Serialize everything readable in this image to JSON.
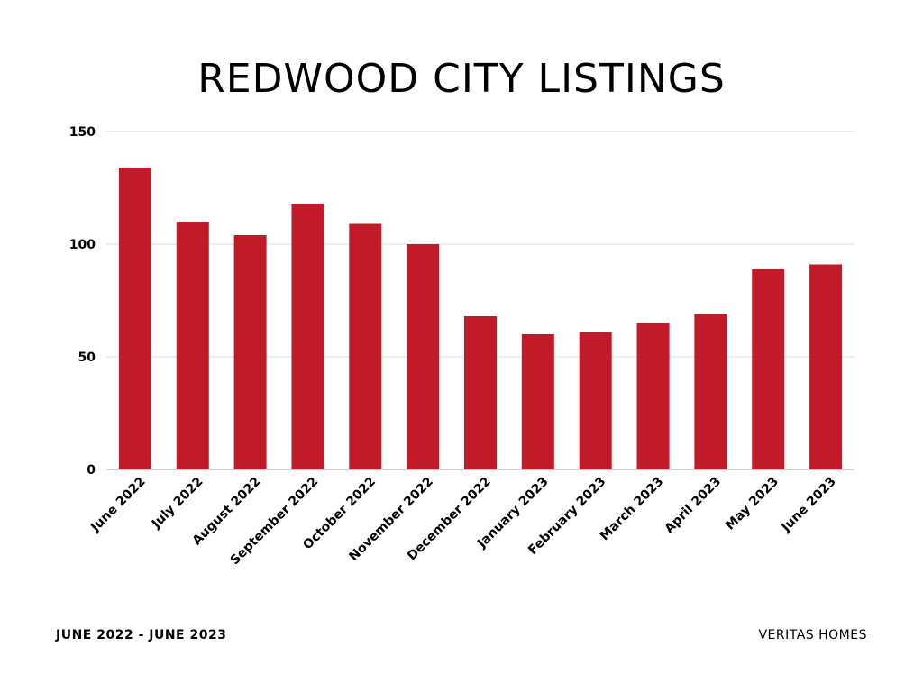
{
  "chart_data": {
    "type": "bar",
    "title": "REDWOOD CITY LISTINGS",
    "categories": [
      "June 2022",
      "July 2022",
      "August 2022",
      "September 2022",
      "October 2022",
      "November 2022",
      "December 2022",
      "January 2023",
      "February 2023",
      "March 2023",
      "April 2023",
      "May 2023",
      "June 2023"
    ],
    "values": [
      134,
      110,
      104,
      118,
      109,
      100,
      68,
      60,
      61,
      65,
      69,
      89,
      91
    ],
    "ylim": [
      0,
      150
    ],
    "yticks": [
      "0",
      "50",
      "100",
      "150"
    ],
    "xlabel": "",
    "ylabel": "",
    "grid": true,
    "bar_color": "#c11b2a"
  },
  "footer": {
    "left": "JUNE 2022 - JUNE 2023",
    "right": "VERITAS HOMES"
  }
}
